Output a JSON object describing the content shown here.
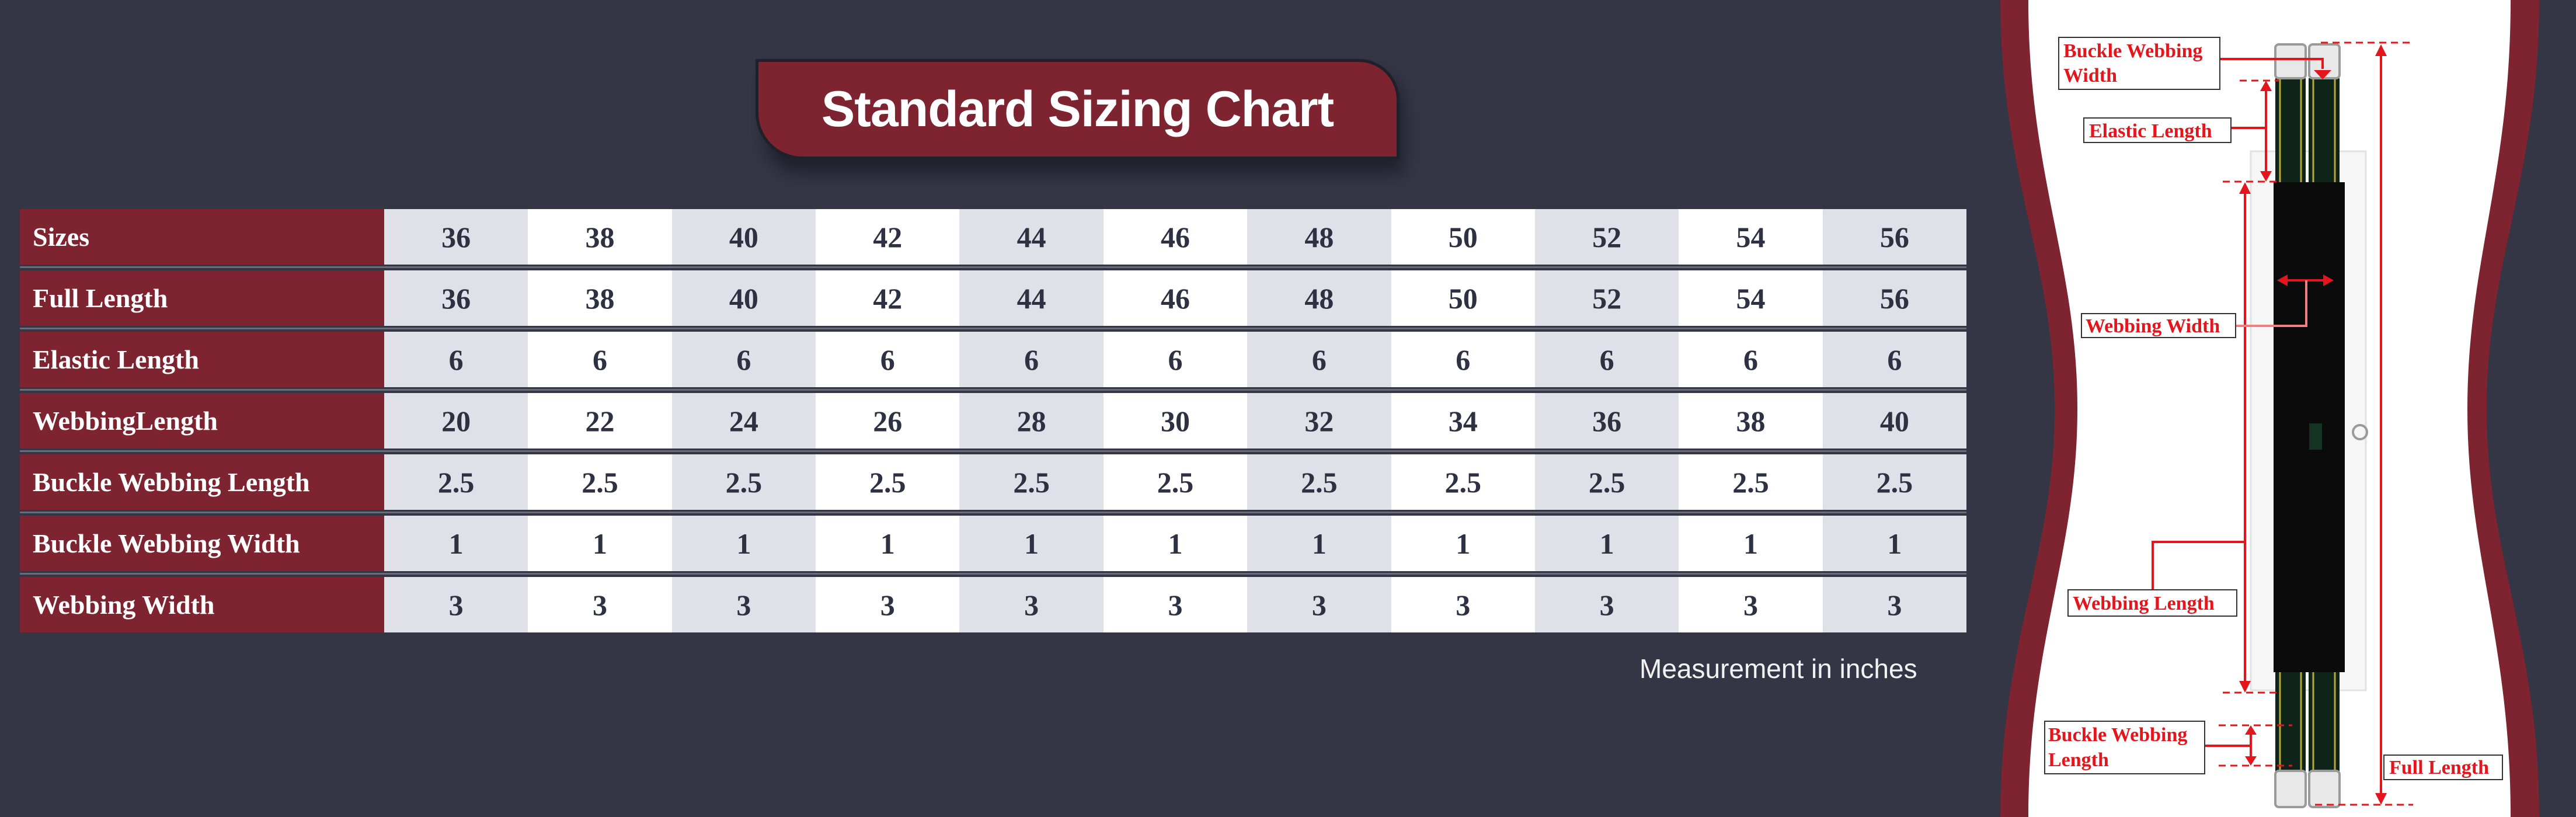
{
  "title": "Standard Sizing Chart",
  "table": {
    "rows": [
      {
        "label": "Sizes",
        "values": [
          "36",
          "38",
          "40",
          "42",
          "44",
          "46",
          "48",
          "50",
          "52",
          "54",
          "56"
        ]
      },
      {
        "label": "Full Length",
        "values": [
          "36",
          "38",
          "40",
          "42",
          "44",
          "46",
          "48",
          "50",
          "52",
          "54",
          "56"
        ]
      },
      {
        "label": "Elastic Length",
        "values": [
          "6",
          "6",
          "6",
          "6",
          "6",
          "6",
          "6",
          "6",
          "6",
          "6",
          "6"
        ]
      },
      {
        "label": "WebbingLength",
        "values": [
          "20",
          "22",
          "24",
          "26",
          "28",
          "30",
          "32",
          "34",
          "36",
          "38",
          "40"
        ]
      },
      {
        "label": "Buckle Webbing Length",
        "values": [
          "2.5",
          "2.5",
          "2.5",
          "2.5",
          "2.5",
          "2.5",
          "2.5",
          "2.5",
          "2.5",
          "2.5",
          "2.5"
        ]
      },
      {
        "label": "Buckle Webbing Width",
        "values": [
          "1",
          "1",
          "1",
          "1",
          "1",
          "1",
          "1",
          "1",
          "1",
          "1",
          "1"
        ]
      },
      {
        "label": "Webbing Width",
        "values": [
          "3",
          "3",
          "3",
          "3",
          "3",
          "3",
          "3",
          "3",
          "3",
          "3",
          "3"
        ]
      }
    ]
  },
  "note": "Measurement in inches",
  "diagram": {
    "labels": {
      "buckle_webbing_width": [
        "Buckle Webbing",
        "Width"
      ],
      "elastic_length": "Elastic Length",
      "webbing_width": "Webbing Width",
      "webbing_length": "Webbing Length",
      "buckle_webbing_length": [
        "Buckle Webbing",
        "Length"
      ],
      "full_length": "Full Length"
    }
  },
  "colors": {
    "background": "#343646",
    "accent": "#7d2430",
    "annotation": "#e3161d",
    "row_alt": "#dfe0e8"
  }
}
